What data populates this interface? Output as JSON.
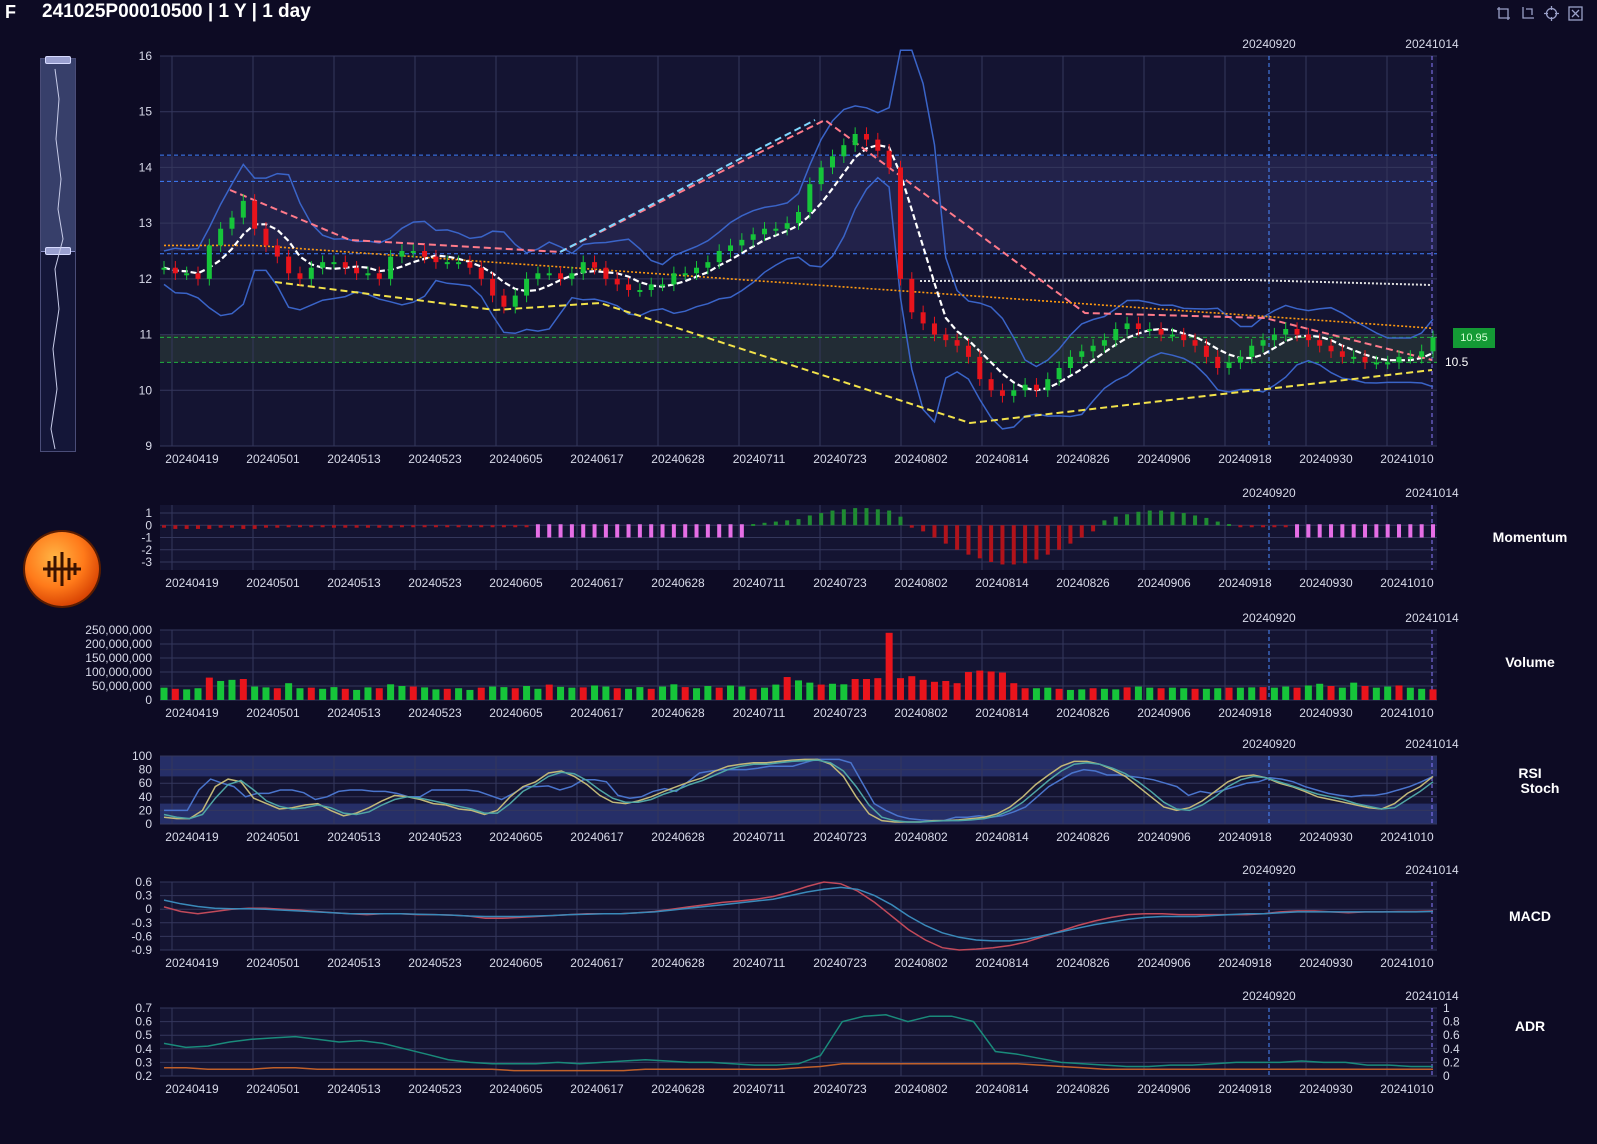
{
  "header": {
    "ticker": "F",
    "title": "241025P00010500 | 1 Y | 1 day"
  },
  "toolbar": {
    "icons": [
      "crop-icon",
      "crop-reset-icon",
      "restore-icon",
      "fullscreen-icon"
    ]
  },
  "colors": {
    "up": "#16c43a",
    "down": "#e8141c",
    "mom_up": "#1f8a32",
    "mom_down": "#b2131b",
    "mom_flat": "#e66ee6",
    "rsi": "#4a74cc",
    "stoch_k": "#c2b878",
    "stoch_d": "#4fa5a5",
    "macd": "#c24a5a",
    "signal": "#3a8aba",
    "adr1": "#1a8a7a",
    "adr2": "#c0602a",
    "bb": "#3a64c8",
    "ma": "#ffffff",
    "ma_long": "#ff9a10"
  },
  "markers": {
    "date1": "20240920",
    "date2": "20241014"
  },
  "current_price": {
    "price_tag": "10.95",
    "level": "10.5"
  },
  "panel_labels": {
    "momentum": "Momentum",
    "volume": "Volume",
    "rsi": "RSI",
    "stoch": "Stoch",
    "macd": "MACD",
    "adr": "ADR"
  },
  "chart_data": {
    "type": "candlestick-multi-panel",
    "x_ticks": [
      "20240419",
      "20240501",
      "20240513",
      "20240523",
      "20240605",
      "20240617",
      "20240628",
      "20240711",
      "20240723",
      "20240802",
      "20240814",
      "20240826",
      "20240906",
      "20240918",
      "20240930",
      "20241010"
    ],
    "price_axis": {
      "ticks": [
        "16",
        "15",
        "14",
        "13",
        "12",
        "11",
        "10",
        "9"
      ],
      "ylim": [
        9,
        16
      ]
    },
    "close": [
      12.2,
      12.1,
      12.1,
      12.0,
      12.6,
      12.9,
      13.1,
      13.4,
      12.9,
      12.6,
      12.4,
      12.1,
      12.0,
      12.2,
      12.3,
      12.3,
      12.2,
      12.1,
      12.1,
      12.0,
      12.4,
      12.5,
      12.5,
      12.4,
      12.3,
      12.3,
      12.3,
      12.2,
      12.0,
      11.7,
      11.5,
      11.7,
      12.0,
      12.1,
      12.1,
      12.0,
      12.1,
      12.3,
      12.2,
      12.0,
      11.9,
      11.8,
      11.8,
      11.9,
      11.9,
      12.1,
      12.1,
      12.2,
      12.3,
      12.5,
      12.6,
      12.7,
      12.8,
      12.9,
      12.9,
      13.0,
      13.2,
      13.7,
      14.0,
      14.2,
      14.4,
      14.6,
      14.5,
      14.3,
      14.0,
      12.0,
      11.4,
      11.2,
      11.0,
      10.9,
      10.8,
      10.6,
      10.2,
      10.0,
      9.9,
      10.0,
      10.1,
      10.0,
      10.2,
      10.4,
      10.6,
      10.7,
      10.8,
      10.9,
      11.1,
      11.2,
      11.1,
      11.1,
      11.0,
      11.0,
      10.9,
      10.8,
      10.6,
      10.4,
      10.5,
      10.6,
      10.8,
      10.9,
      11.0,
      11.1,
      11.0,
      10.9,
      10.8,
      10.7,
      10.6,
      10.6,
      10.5,
      10.5,
      10.5,
      10.6,
      10.6,
      10.7,
      10.95
    ],
    "momentum_axis": {
      "ticks": [
        "1",
        "0",
        "-1",
        "-2",
        "-3"
      ]
    },
    "momentum": [
      -0.2,
      -0.3,
      -0.3,
      -0.3,
      -0.3,
      -0.2,
      -0.2,
      -0.3,
      -0.3,
      -0.2,
      -0.2,
      -0.1,
      -0.1,
      -0.1,
      -0.1,
      -0.2,
      -0.2,
      -0.2,
      -0.2,
      -0.2,
      -0.2,
      -0.1,
      -0.1,
      -0.1,
      -0.1,
      -0.1,
      -0.1,
      -0.1,
      -0.1,
      -0.1,
      -0.1,
      -0.1,
      -0.1,
      0,
      0,
      0,
      0,
      0,
      0,
      0,
      0,
      0,
      0,
      0,
      0,
      0,
      0,
      0,
      0,
      0,
      0,
      0,
      0.1,
      0.2,
      0.3,
      0.4,
      0.5,
      0.8,
      1.0,
      1.2,
      1.3,
      1.4,
      1.4,
      1.3,
      1.2,
      0.7,
      -0.2,
      -0.5,
      -1.0,
      -1.5,
      -2.0,
      -2.4,
      -2.7,
      -3.0,
      -3.2,
      -3.2,
      -3.1,
      -2.8,
      -2.4,
      -2.0,
      -1.5,
      -1.0,
      -0.5,
      0.4,
      0.7,
      0.9,
      1.1,
      1.2,
      1.2,
      1.1,
      1.0,
      0.8,
      0.6,
      0.3,
      0.1,
      -0.1,
      -0.1,
      -0.1,
      -0.1,
      -0.1,
      0,
      0,
      0,
      0,
      0,
      0,
      0,
      0,
      0,
      0,
      0,
      0,
      0
    ],
    "volume_axis": {
      "ticks": [
        "250,000,000",
        "200,000,000",
        "150,000,000",
        "100,000,000",
        "50,000,000",
        "0"
      ]
    },
    "volume": [
      44,
      40,
      38,
      42,
      80,
      68,
      72,
      75,
      48,
      45,
      42,
      60,
      42,
      44,
      40,
      46,
      40,
      36,
      45,
      42,
      56,
      50,
      48,
      45,
      38,
      40,
      42,
      36,
      44,
      48,
      46,
      42,
      50,
      40,
      55,
      47,
      44,
      45,
      52,
      48,
      42,
      40,
      46,
      40,
      48,
      56,
      46,
      42,
      50,
      44,
      52,
      48,
      40,
      44,
      55,
      82,
      70,
      62,
      55,
      58,
      56,
      75,
      75,
      78,
      240,
      78,
      85,
      72,
      65,
      68,
      60,
      100,
      105,
      102,
      98,
      60,
      42,
      42,
      44,
      40,
      36,
      38,
      42,
      40,
      38,
      45,
      48,
      44,
      42,
      44,
      42,
      40,
      40,
      42,
      44,
      44,
      45,
      46,
      44,
      48,
      44,
      52,
      58,
      50,
      44,
      62,
      50,
      44,
      48,
      52,
      44,
      40,
      38
    ],
    "rsi_axis": {
      "ticks": [
        "100",
        "80",
        "60",
        "40",
        "20",
        "0"
      ]
    },
    "rsi": [
      20,
      20,
      20,
      50,
      66,
      60,
      55,
      40,
      45,
      45,
      50,
      50,
      46,
      36,
      40,
      48,
      50,
      50,
      48,
      48,
      45,
      40,
      40,
      50,
      50,
      50,
      50,
      48,
      42,
      36,
      45,
      55,
      55,
      56,
      50,
      55,
      65,
      65,
      62,
      42,
      38,
      40,
      48,
      52,
      48,
      62,
      75,
      78,
      80,
      80,
      80,
      82,
      85,
      85,
      85,
      90,
      95,
      95,
      95,
      90,
      60,
      30,
      20,
      12,
      8,
      6,
      5,
      5,
      10,
      10,
      12,
      10,
      12,
      18,
      25,
      40,
      55,
      65,
      75,
      80,
      78,
      72,
      72,
      70,
      68,
      65,
      60,
      55,
      42,
      48,
      45,
      50,
      55,
      60,
      62,
      68,
      66,
      62,
      55,
      50,
      45,
      42,
      40,
      42,
      42,
      45,
      50,
      55,
      62,
      70
    ],
    "stoch_k": [
      10,
      8,
      8,
      20,
      55,
      66,
      62,
      38,
      30,
      22,
      24,
      28,
      30,
      20,
      12,
      16,
      24,
      34,
      42,
      40,
      36,
      30,
      28,
      22,
      20,
      14,
      20,
      40,
      55,
      62,
      75,
      78,
      70,
      58,
      42,
      32,
      30,
      34,
      40,
      48,
      55,
      62,
      68,
      78,
      85,
      88,
      90,
      90,
      92,
      94,
      95,
      95,
      88,
      70,
      40,
      15,
      5,
      3,
      3,
      3,
      5,
      5,
      6,
      8,
      10,
      15,
      25,
      40,
      58,
      72,
      85,
      92,
      92,
      88,
      80,
      70,
      55,
      40,
      25,
      20,
      24,
      34,
      48,
      62,
      70,
      72,
      68,
      60,
      55,
      48,
      40,
      36,
      32,
      28,
      24,
      22,
      30,
      45,
      55,
      70
    ],
    "stoch_d": [
      14,
      10,
      8,
      14,
      38,
      58,
      64,
      50,
      34,
      26,
      22,
      24,
      28,
      24,
      16,
      14,
      18,
      28,
      36,
      40,
      38,
      34,
      30,
      26,
      22,
      16,
      16,
      30,
      48,
      58,
      70,
      76,
      74,
      64,
      50,
      38,
      32,
      32,
      36,
      44,
      50,
      58,
      64,
      72,
      80,
      85,
      88,
      88,
      90,
      92,
      93,
      94,
      90,
      78,
      55,
      28,
      10,
      5,
      3,
      3,
      4,
      5,
      5,
      6,
      8,
      12,
      20,
      32,
      48,
      64,
      78,
      88,
      90,
      88,
      82,
      74,
      62,
      48,
      32,
      22,
      20,
      28,
      40,
      55,
      65,
      70,
      68,
      62,
      56,
      50,
      44,
      40,
      36,
      30,
      26,
      22,
      24,
      36,
      48,
      62
    ],
    "macd_axis": {
      "ticks": [
        "0.6",
        "0.3",
        "0",
        "-0.3",
        "-0.6",
        "-0.9"
      ]
    },
    "macd": [
      0.05,
      -0.05,
      -0.1,
      -0.05,
      0,
      0.02,
      0.02,
      0,
      -0.02,
      -0.05,
      -0.08,
      -0.1,
      -0.12,
      -0.1,
      -0.1,
      -0.12,
      -0.12,
      -0.13,
      -0.15,
      -0.2,
      -0.2,
      -0.18,
      -0.16,
      -0.14,
      -0.12,
      -0.1,
      -0.1,
      -0.1,
      -0.08,
      -0.05,
      0,
      0.05,
      0.1,
      0.15,
      0.18,
      0.22,
      0.28,
      0.38,
      0.5,
      0.6,
      0.56,
      0.4,
      0.15,
      -0.15,
      -0.45,
      -0.68,
      -0.85,
      -0.9,
      -0.88,
      -0.85,
      -0.8,
      -0.72,
      -0.6,
      -0.48,
      -0.36,
      -0.26,
      -0.18,
      -0.12,
      -0.1,
      -0.1,
      -0.12,
      -0.12,
      -0.12,
      -0.12,
      -0.12,
      -0.1,
      -0.06,
      -0.04,
      -0.04,
      -0.06,
      -0.08,
      -0.06,
      -0.06,
      -0.05,
      -0.05,
      -0.04
    ],
    "signal": [
      0.2,
      0.12,
      0.06,
      0.02,
      0.01,
      0.01,
      0,
      -0.02,
      -0.04,
      -0.06,
      -0.08,
      -0.1,
      -0.1,
      -0.1,
      -0.1,
      -0.11,
      -0.12,
      -0.13,
      -0.15,
      -0.16,
      -0.16,
      -0.16,
      -0.15,
      -0.14,
      -0.12,
      -0.11,
      -0.1,
      -0.1,
      -0.08,
      -0.06,
      -0.02,
      0.02,
      0.06,
      0.1,
      0.14,
      0.18,
      0.22,
      0.3,
      0.38,
      0.44,
      0.48,
      0.44,
      0.3,
      0.1,
      -0.15,
      -0.36,
      -0.52,
      -0.62,
      -0.68,
      -0.7,
      -0.7,
      -0.66,
      -0.58,
      -0.5,
      -0.42,
      -0.34,
      -0.28,
      -0.22,
      -0.18,
      -0.16,
      -0.16,
      -0.16,
      -0.14,
      -0.12,
      -0.1,
      -0.1,
      -0.08,
      -0.06,
      -0.06,
      -0.06,
      -0.06,
      -0.06,
      -0.06,
      -0.06,
      -0.06,
      -0.05
    ],
    "adr_axis_left": {
      "ticks": [
        "0.7",
        "0.6",
        "0.5",
        "0.4",
        "0.3",
        "0.2"
      ]
    },
    "adr_axis_right": {
      "ticks": [
        "1",
        "0.8",
        "0.6",
        "0.4",
        "0.2",
        "0"
      ]
    },
    "adr": [
      0.44,
      0.41,
      0.42,
      0.45,
      0.47,
      0.48,
      0.49,
      0.47,
      0.45,
      0.46,
      0.44,
      0.4,
      0.36,
      0.32,
      0.3,
      0.29,
      0.29,
      0.29,
      0.3,
      0.29,
      0.3,
      0.31,
      0.32,
      0.31,
      0.3,
      0.3,
      0.29,
      0.28,
      0.28,
      0.29,
      0.35,
      0.6,
      0.64,
      0.65,
      0.6,
      0.64,
      0.64,
      0.6,
      0.38,
      0.36,
      0.33,
      0.3,
      0.29,
      0.28,
      0.27,
      0.27,
      0.28,
      0.28,
      0.29,
      0.3,
      0.3,
      0.3,
      0.31,
      0.3,
      0.3,
      0.28,
      0.28,
      0.27,
      0.27
    ],
    "adr2": [
      0.26,
      0.26,
      0.25,
      0.25,
      0.25,
      0.26,
      0.26,
      0.25,
      0.25,
      0.25,
      0.25,
      0.25,
      0.25,
      0.25,
      0.25,
      0.25,
      0.24,
      0.24,
      0.24,
      0.24,
      0.24,
      0.24,
      0.25,
      0.25,
      0.25,
      0.25,
      0.25,
      0.25,
      0.25,
      0.26,
      0.27,
      0.29,
      0.29,
      0.29,
      0.29,
      0.29,
      0.29,
      0.29,
      0.29,
      0.29,
      0.28,
      0.27,
      0.26,
      0.25,
      0.25,
      0.25,
      0.25,
      0.25,
      0.25,
      0.25,
      0.25,
      0.25,
      0.25,
      0.25,
      0.25,
      0.25,
      0.25,
      0.25,
      0.25
    ]
  }
}
